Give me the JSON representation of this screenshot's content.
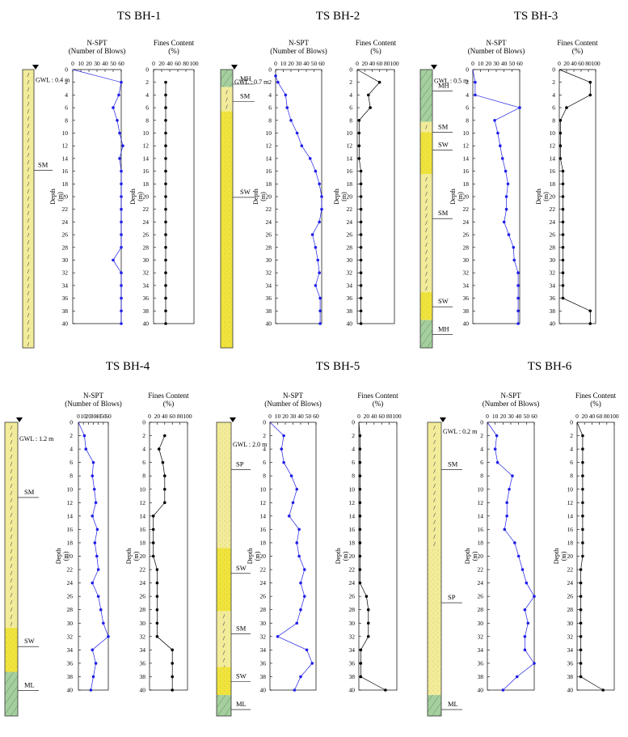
{
  "chart_data": [
    {
      "type": "line",
      "title": "TS BH-1",
      "gwl": "GWL : 0.4 m",
      "gwl_depth": 0.4,
      "layers": [
        {
          "label": "SM",
          "top": 0,
          "bottom": 40,
          "soil": "SM"
        }
      ],
      "spt_title": [
        "N-SPT",
        "(Number of Blows)"
      ],
      "fines_title": [
        "Fines Content",
        "(%)"
      ],
      "ylabel": [
        "Depth",
        "(m)"
      ],
      "spt_depth": [
        0,
        2,
        4,
        6,
        8,
        10,
        12,
        14,
        16,
        18,
        20,
        22,
        24,
        26,
        28,
        30,
        32,
        34,
        36,
        38,
        40
      ],
      "spt": [
        0,
        60,
        57,
        50,
        55,
        58,
        62,
        58,
        60,
        60,
        60,
        60,
        60,
        60,
        60,
        50,
        60,
        60,
        60,
        60,
        60
      ],
      "fines_depth": [
        2,
        4,
        6,
        8,
        10,
        12,
        14,
        16,
        18,
        20,
        22,
        24,
        26,
        28,
        30,
        32,
        34,
        36,
        38,
        40
      ],
      "fines": [
        30,
        30,
        30,
        30,
        30,
        30,
        30,
        30,
        30,
        30,
        30,
        30,
        30,
        30,
        30,
        30,
        30,
        30,
        30,
        30
      ]
    },
    {
      "type": "line",
      "title": "TS BH-2",
      "gwl": "GWL : 0.7 m",
      "gwl_depth": 0.7,
      "layers": [
        {
          "label": "MH",
          "top": 0,
          "bottom": 2.5,
          "soil": "MH"
        },
        {
          "label": "SM",
          "top": 2.5,
          "bottom": 6,
          "soil": "SM"
        },
        {
          "label": "SW",
          "top": 6,
          "bottom": 40,
          "soil": "SW"
        }
      ],
      "spt_title": [
        "N-SPT",
        "(Number of Blows)"
      ],
      "fines_title": [
        "Fines Content",
        "(%)"
      ],
      "ylabel": [
        "Depth",
        "(m)"
      ],
      "spt_depth": [
        1,
        2,
        4,
        6,
        8,
        10,
        12,
        14,
        16,
        18,
        20,
        22,
        24,
        26,
        28,
        30,
        32,
        34,
        36,
        38,
        40
      ],
      "spt": [
        0,
        3,
        13,
        15,
        20,
        28,
        34,
        45,
        52,
        57,
        60,
        60,
        57,
        48,
        52,
        55,
        57,
        52,
        58,
        58,
        58
      ],
      "fines_depth": [
        0,
        2,
        4,
        6,
        8,
        10,
        12,
        14,
        16,
        18,
        20,
        22,
        24,
        26,
        28,
        30,
        32,
        34,
        36,
        38,
        40
      ],
      "fines": [
        0,
        60,
        30,
        35,
        5,
        5,
        5,
        5,
        10,
        10,
        10,
        10,
        10,
        10,
        10,
        10,
        10,
        10,
        10,
        10,
        10
      ]
    },
    {
      "type": "line",
      "title": "TS BH-3",
      "gwl": "GWL : 0.5 m",
      "gwl_depth": 0.5,
      "layers": [
        {
          "label": "MH",
          "top": 0,
          "bottom": 7.5,
          "soil": "MH"
        },
        {
          "label": "SM",
          "top": 7.5,
          "bottom": 9,
          "soil": "SM"
        },
        {
          "label": "SW",
          "top": 9,
          "bottom": 15,
          "soil": "SW"
        },
        {
          "label": "SM",
          "top": 15,
          "bottom": 32,
          "soil": "SM"
        },
        {
          "label": "SW",
          "top": 32,
          "bottom": 36,
          "soil": "SW"
        },
        {
          "label": "MH",
          "top": 36,
          "bottom": 40,
          "soil": "MH"
        }
      ],
      "spt_title": [
        "N-SPT",
        "(Number of Blows)"
      ],
      "fines_title": [
        "Fines Content",
        "(%)"
      ],
      "ylabel": [
        "Depth",
        "(m)"
      ],
      "spt_depth": [
        0,
        2,
        4,
        6,
        8,
        10,
        12,
        14,
        16,
        18,
        20,
        22,
        24,
        26,
        28,
        30,
        32,
        34,
        36,
        38,
        40
      ],
      "spt": [
        0,
        3,
        3,
        60,
        28,
        32,
        35,
        38,
        42,
        45,
        43,
        43,
        40,
        46,
        52,
        53,
        58,
        58,
        58,
        58,
        58
      ],
      "fines_depth": [
        0,
        2,
        4,
        6,
        8,
        10,
        12,
        14,
        16,
        18,
        20,
        22,
        24,
        26,
        28,
        30,
        32,
        34,
        36,
        38,
        40
      ],
      "fines": [
        0,
        85,
        85,
        20,
        3,
        3,
        3,
        3,
        10,
        10,
        10,
        10,
        10,
        10,
        10,
        10,
        10,
        10,
        10,
        85,
        85
      ]
    },
    {
      "type": "line",
      "title": "TS BH-4",
      "gwl": "GWL : 1.2 m",
      "gwl_depth": 1.2,
      "layers": [
        {
          "label": "SM",
          "top": 0,
          "bottom": 28,
          "soil": "SM"
        },
        {
          "label": "SW",
          "top": 28,
          "bottom": 34,
          "soil": "SW"
        },
        {
          "label": "ML",
          "top": 34,
          "bottom": 40,
          "soil": "ML"
        }
      ],
      "spt_title": [
        "N-SPT",
        "(Number of Blows)"
      ],
      "fines_title": [
        "Fines Content",
        "(%)"
      ],
      "ylabel": [
        "Depth",
        "(m)"
      ],
      "spt_depth": [
        0,
        2,
        4,
        6,
        8,
        10,
        12,
        14,
        16,
        18,
        20,
        22,
        24,
        26,
        28,
        30,
        32,
        34,
        36,
        38,
        40
      ],
      "spt": [
        0,
        12,
        15,
        30,
        28,
        32,
        35,
        28,
        38,
        33,
        37,
        40,
        28,
        40,
        45,
        50,
        60,
        28,
        35,
        30,
        25
      ],
      "fines_depth": [
        2,
        4,
        6,
        8,
        10,
        12,
        14,
        16,
        18,
        20,
        22,
        24,
        26,
        28,
        30,
        32,
        34,
        36,
        38,
        40
      ],
      "fines": [
        40,
        25,
        35,
        40,
        40,
        40,
        10,
        10,
        10,
        10,
        20,
        20,
        20,
        20,
        20,
        20,
        60,
        60,
        60,
        60
      ]
    },
    {
      "type": "line",
      "title": "TS BH-5",
      "gwl": "GWL : 2.0 m",
      "gwl_depth": 2.0,
      "layers": [
        {
          "label": "SP",
          "top": 0,
          "bottom": 18,
          "soil": "SP"
        },
        {
          "label": "SW",
          "top": 18,
          "bottom": 27,
          "soil": "SW"
        },
        {
          "label": "SM",
          "top": 27,
          "bottom": 35,
          "soil": "SM"
        },
        {
          "label": "SW",
          "top": 35,
          "bottom": 39,
          "soil": "SW"
        },
        {
          "label": "ML",
          "top": 39,
          "bottom": 42,
          "soil": "ML"
        }
      ],
      "spt_title": [
        "N-SPT",
        "(Number of Blows)"
      ],
      "fines_title": [
        "Fines Content",
        "(%)"
      ],
      "ylabel": [
        "Depth",
        "(m)"
      ],
      "spt_depth": [
        0,
        2,
        4,
        6,
        8,
        10,
        12,
        14,
        16,
        18,
        20,
        22,
        24,
        26,
        28,
        30,
        32,
        34,
        36,
        38,
        40
      ],
      "spt": [
        0,
        18,
        15,
        18,
        28,
        35,
        30,
        25,
        38,
        35,
        38,
        45,
        40,
        45,
        40,
        35,
        10,
        48,
        55,
        40,
        32
      ],
      "fines_depth": [
        0,
        2,
        4,
        6,
        8,
        10,
        12,
        14,
        16,
        18,
        20,
        22,
        24,
        26,
        28,
        30,
        32,
        34,
        36,
        38,
        40
      ],
      "fines": [
        0,
        3,
        3,
        3,
        3,
        3,
        3,
        3,
        3,
        3,
        3,
        3,
        3,
        20,
        25,
        25,
        25,
        5,
        5,
        5,
        70
      ]
    },
    {
      "type": "line",
      "title": "TS BH-6",
      "gwl": "GWL : 0.2 m",
      "gwl_depth": 0.2,
      "layers": [
        {
          "label": "SM",
          "top": 0,
          "bottom": 18,
          "soil": "SM"
        },
        {
          "label": "SP",
          "top": 18,
          "bottom": 39,
          "soil": "SP"
        },
        {
          "label": "ML",
          "top": 39,
          "bottom": 42,
          "soil": "ML"
        }
      ],
      "spt_title": [
        "N-SPT",
        "(Number of Blows)"
      ],
      "fines_title": [
        "Fines Content",
        "(%)"
      ],
      "ylabel": [
        "Depth",
        "(m)"
      ],
      "spt_depth": [
        0,
        2,
        4,
        6,
        8,
        10,
        12,
        14,
        16,
        18,
        20,
        22,
        24,
        26,
        28,
        30,
        32,
        34,
        36,
        38,
        40
      ],
      "spt": [
        0,
        12,
        10,
        13,
        32,
        28,
        25,
        25,
        22,
        35,
        40,
        45,
        50,
        60,
        48,
        52,
        48,
        48,
        60,
        38,
        20
      ],
      "fines_depth": [
        0,
        2,
        4,
        6,
        8,
        10,
        12,
        14,
        16,
        18,
        20,
        22,
        24,
        26,
        28,
        30,
        32,
        34,
        36,
        38,
        40
      ],
      "fines": [
        0,
        15,
        15,
        15,
        15,
        15,
        15,
        15,
        15,
        15,
        15,
        10,
        10,
        10,
        10,
        10,
        10,
        10,
        10,
        10,
        70
      ]
    }
  ],
  "axes": {
    "spt_ticks": [
      0,
      10,
      20,
      30,
      40,
      50,
      60
    ],
    "fines_ticks": [
      0,
      20,
      40,
      60,
      80,
      100
    ],
    "depth_ticks": [
      0,
      2,
      4,
      6,
      8,
      10,
      12,
      14,
      16,
      18,
      20,
      22,
      24,
      26,
      28,
      30,
      32,
      34,
      36,
      38,
      40
    ],
    "spt_range": [
      0,
      60
    ],
    "fines_range": [
      0,
      100
    ],
    "depth_range": [
      0,
      40
    ]
  },
  "colors": {
    "spt": "#1f1fe6",
    "fines": "#000000",
    "sand": "#f2ec9a",
    "sand_dense": "#f0e43c",
    "silt": "#a5cf9e",
    "border": "#333333"
  }
}
